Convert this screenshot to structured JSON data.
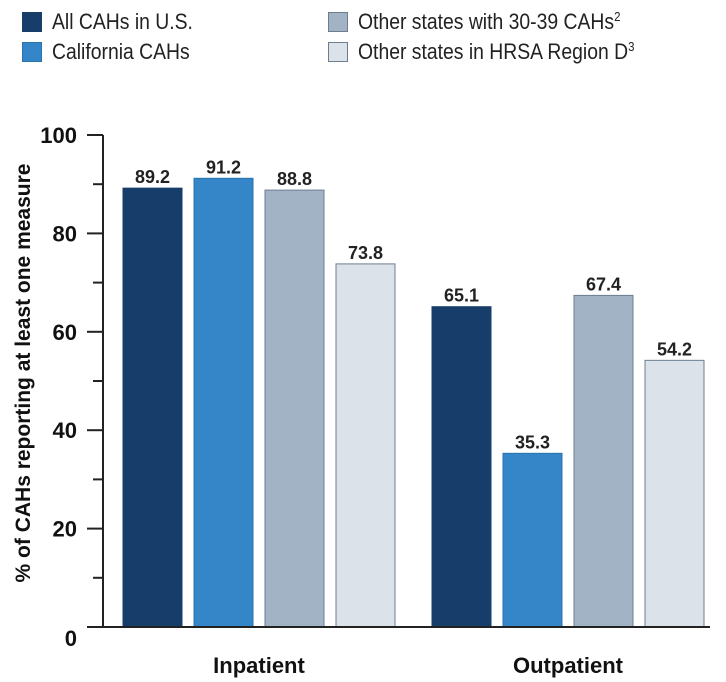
{
  "chart_data": {
    "type": "bar",
    "categories": [
      "Inpatient",
      "Outpatient"
    ],
    "series": [
      {
        "name": "All CAHs in U.S.",
        "values": [
          89.2,
          65.1
        ],
        "color": "#173d6b",
        "border": "#173d6b"
      },
      {
        "name": "California CAHs",
        "values": [
          91.2,
          35.3
        ],
        "color": "#3486c8",
        "border": "#2a73ad"
      },
      {
        "name": "Other states with 30-39 CAHs",
        "footnote": "2",
        "values": [
          88.8,
          67.4
        ],
        "color": "#a2b3c5",
        "border": "#6d7d8e"
      },
      {
        "name": "Other states in HRSA Region D",
        "footnote": "3",
        "values": [
          73.8,
          54.2
        ],
        "color": "#dce2ea",
        "border": "#6d7d8e"
      }
    ],
    "ylabel": "% of CAHs reporting at least one measure",
    "ylim": [
      0,
      100
    ],
    "yticks": [
      "0",
      "20",
      "40",
      "60",
      "80",
      "100"
    ],
    "yticks_values": [
      0,
      20,
      40,
      60,
      80,
      100
    ],
    "minor_ticks": [
      10,
      30,
      50,
      70,
      90
    ],
    "grid": false,
    "legend_position": "top"
  }
}
